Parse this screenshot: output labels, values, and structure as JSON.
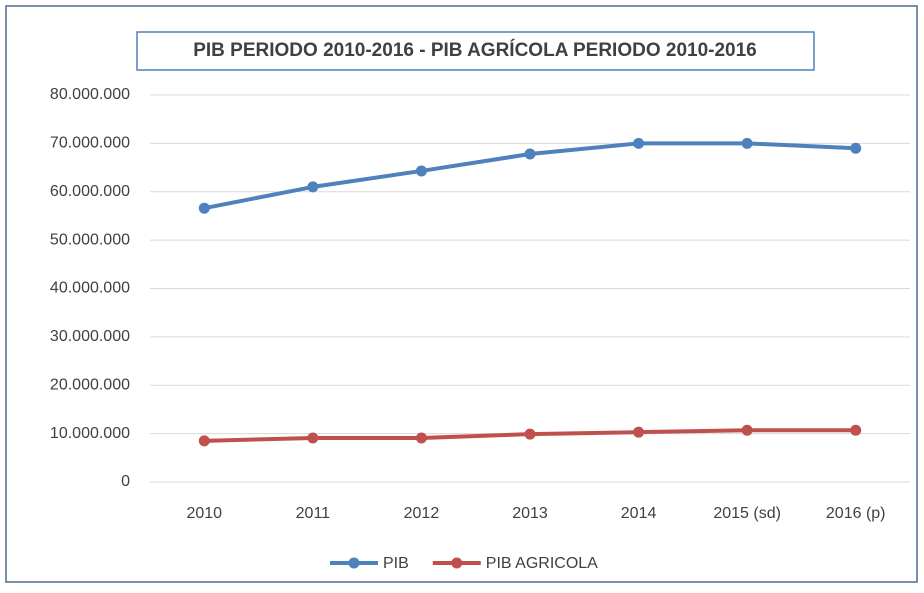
{
  "chart_data": {
    "type": "line",
    "title": "PIB PERIODO 2010-2016 - PIB AGRÍCOLA PERIODO 2010-2016",
    "categories": [
      "2010",
      "2011",
      "2012",
      "2013",
      "2014",
      "2015 (sd)",
      "2016 (p)"
    ],
    "series": [
      {
        "name": "PIB",
        "color": "#4f81bd",
        "values": [
          56600000,
          61000000,
          64300000,
          67800000,
          70000000,
          70000000,
          69000000
        ]
      },
      {
        "name": "PIB AGRICOLA",
        "color": "#c0504d",
        "values": [
          8500000,
          9100000,
          9100000,
          9900000,
          10300000,
          10700000,
          10700000
        ]
      }
    ],
    "ylim": [
      0,
      80000000
    ],
    "yticks": [
      0,
      {
        "value": 10000000,
        "label": "10.000.000"
      },
      {
        "value": 20000000,
        "label": "20.000.000"
      },
      {
        "value": 30000000,
        "label": "30.000.000"
      },
      {
        "value": 40000000,
        "label": "40.000.000"
      },
      {
        "value": 50000000,
        "label": "50.000.000"
      },
      {
        "value": 60000000,
        "label": "60.000.000"
      },
      {
        "value": 70000000,
        "label": "70.000.000"
      },
      {
        "value": 80000000,
        "label": "80.000.000"
      }
    ],
    "grid": true,
    "legend": "bottom"
  }
}
